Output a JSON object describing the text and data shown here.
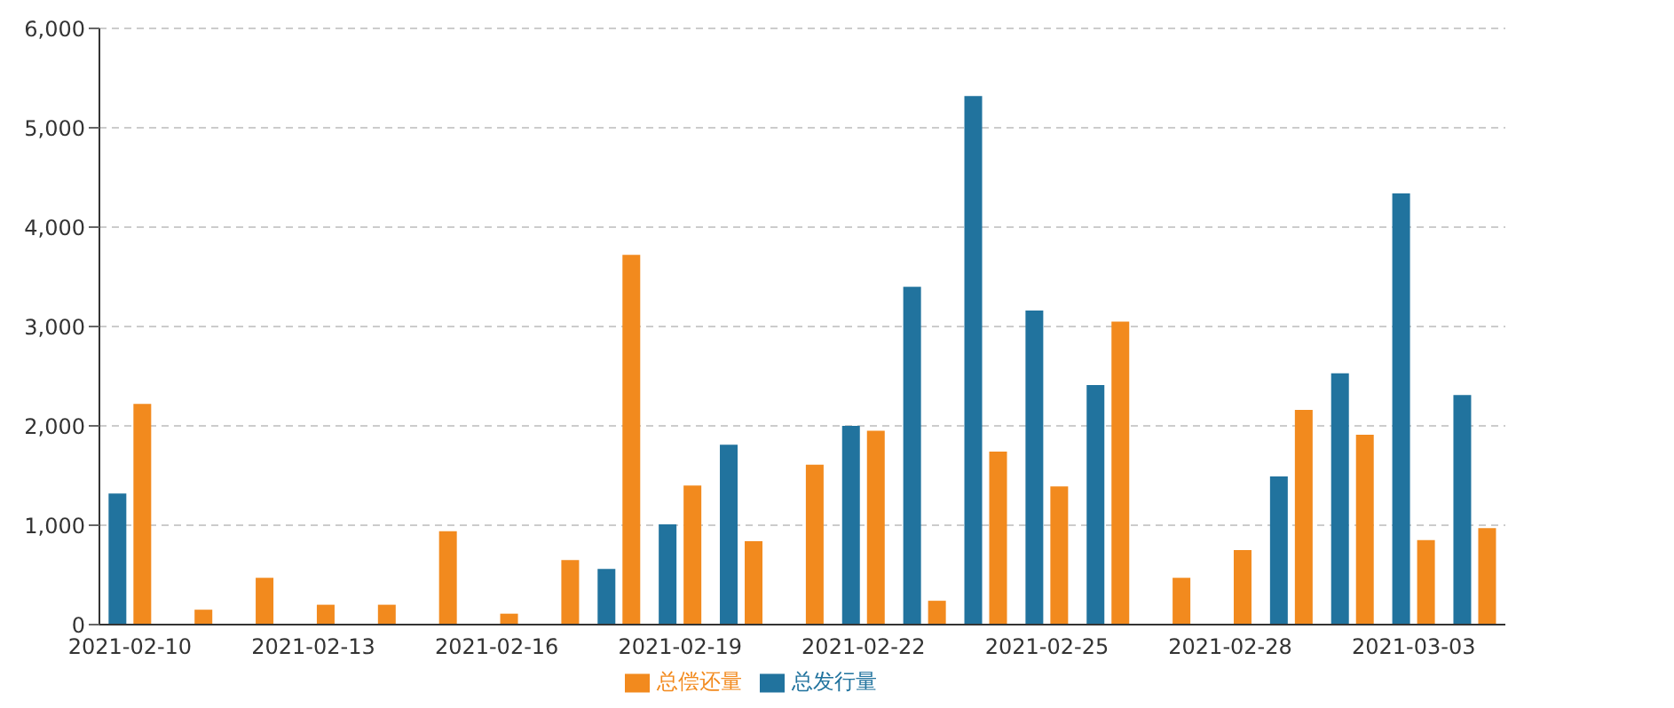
{
  "chart_data": {
    "type": "bar",
    "categories": [
      "2021-02-10",
      null,
      null,
      "2021-02-13",
      null,
      null,
      "2021-02-16",
      null,
      null,
      "2021-02-19",
      null,
      null,
      "2021-02-22",
      null,
      null,
      "2021-02-25",
      null,
      null,
      "2021-02-28",
      null,
      null,
      "2021-03-03",
      null
    ],
    "series": [
      {
        "name": "总发行量",
        "color": "#21739e",
        "values": [
          1320,
          null,
          null,
          null,
          null,
          null,
          null,
          null,
          560,
          1010,
          1810,
          null,
          2000,
          3400,
          5320,
          3160,
          2410,
          null,
          null,
          1490,
          2530,
          4340,
          2310
        ]
      },
      {
        "name": "总偿还量",
        "color": "#f28a1e",
        "values": [
          2220,
          150,
          470,
          200,
          200,
          940,
          110,
          650,
          3720,
          1400,
          840,
          1610,
          1950,
          240,
          1740,
          1390,
          3050,
          470,
          750,
          2160,
          1910,
          850,
          970
        ]
      }
    ],
    "ylim": [
      0,
      6000
    ],
    "yticks": [
      {
        "value": 0,
        "label": "0"
      },
      {
        "value": 1000,
        "label": "1,000"
      },
      {
        "value": 2000,
        "label": "2,000"
      },
      {
        "value": 3000,
        "label": "3,000"
      },
      {
        "value": 4000,
        "label": "4,000"
      },
      {
        "value": 5000,
        "label": "5,000"
      },
      {
        "value": 6000,
        "label": "6,000"
      }
    ],
    "grid": "y",
    "legend": "bottom"
  }
}
